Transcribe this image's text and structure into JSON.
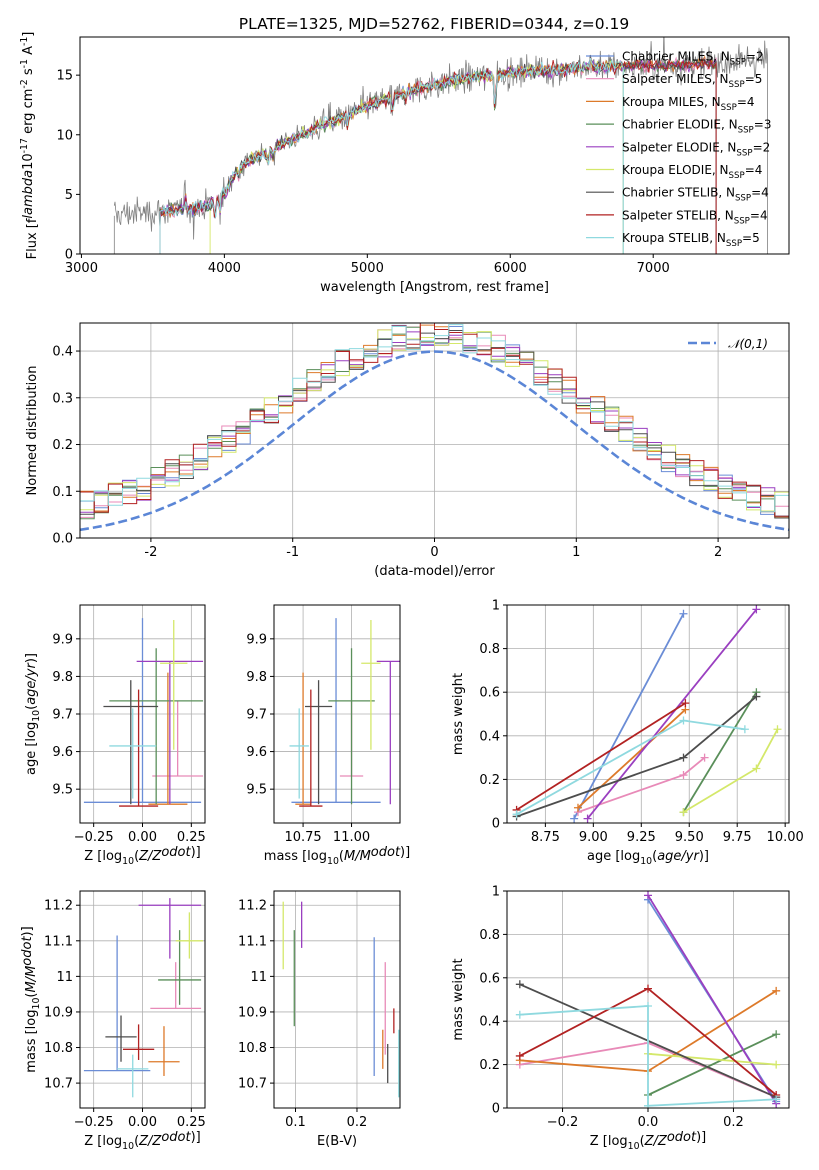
{
  "figure": {
    "title": "PLATE=1325, MJD=52762, FIBERID=0344, z=0.19"
  },
  "series": [
    {
      "name": "Chabrier MILES, N$_{SSP}$=2",
      "color": "#6b8dd6"
    },
    {
      "name": "Salpeter MILES, N$_{SSP}$=5",
      "color": "#e88ab8"
    },
    {
      "name": "Kroupa MILES, N$_{SSP}$=4",
      "color": "#dd7a2a"
    },
    {
      "name": "Chabrier ELODIE, N$_{SSP}$=3",
      "color": "#5a8f5a"
    },
    {
      "name": "Salpeter ELODIE, N$_{SSP}$=2",
      "color": "#9a3fc0"
    },
    {
      "name": "Kroupa ELODIE, N$_{SSP}$=4",
      "color": "#d4e86a"
    },
    {
      "name": "Chabrier STELIB, N$_{SSP}$=4",
      "color": "#4d4d4d"
    },
    {
      "name": "Salpeter STELIB, N$_{SSP}$=4",
      "color": "#b22222"
    },
    {
      "name": "Kroupa STELIB, N$_{SSP}$=5",
      "color": "#8fd9df"
    }
  ],
  "chart_data": [
    {
      "id": "spectrum",
      "type": "line",
      "title": "PLATE=1325, MJD=52762, FIBERID=0344, z=0.19",
      "xlabel": "wavelength [Angstrom, rest frame]",
      "ylabel": "Flux [f$_\\lambda$10$^{-17}$ erg cm$^{-2}$ s$^{-1}$ A$^{-1}$]",
      "xlim": [
        2990,
        7950
      ],
      "ylim": [
        0,
        18.2
      ],
      "xticks": [
        3000,
        4000,
        5000,
        6000,
        7000
      ],
      "yticks": [
        0,
        5,
        10,
        15
      ],
      "grid": false,
      "legend": "top-right",
      "data_color": "#808080",
      "data_range": [
        3230,
        7800
      ],
      "model_ranges": [
        [
          3550,
          6790
        ],
        [
          3550,
          7440
        ],
        [
          3550,
          7440
        ],
        [
          3550,
          7440
        ],
        [
          3550,
          7440
        ],
        [
          3900,
          6790
        ],
        [
          3550,
          7440
        ],
        [
          3550,
          7440
        ],
        [
          3550,
          6790
        ]
      ],
      "continuum": {
        "x": [
          3230,
          3300,
          3500,
          3700,
          3800,
          3900,
          4000,
          4100,
          4300,
          4500,
          4700,
          5000,
          5300,
          5600,
          5900,
          6200,
          6500,
          6800,
          7100,
          7400,
          7800
        ],
        "y": [
          3.2,
          3.4,
          3.5,
          3.7,
          3.9,
          4.2,
          5.0,
          7.3,
          8.6,
          9.8,
          10.9,
          12.4,
          13.7,
          14.6,
          15.1,
          15.4,
          15.6,
          15.8,
          15.8,
          16.0,
          16.4
        ]
      }
    },
    {
      "id": "residuals",
      "type": "line",
      "xlabel": "(data-model)/error",
      "ylabel": "Normed distribution",
      "xlim": [
        -2.5,
        2.5
      ],
      "ylim": [
        0,
        0.46
      ],
      "xticks": [
        -2,
        -1,
        0,
        1,
        2
      ],
      "yticks": [
        0.0,
        0.1,
        0.2,
        0.3,
        0.4
      ],
      "grid": true,
      "legend": "top-right",
      "reference": {
        "name": "$\\mathcal{N}(0,1)$",
        "color": "#5b86d6"
      },
      "hist_bins": 50,
      "hist_width": 0.1
    },
    {
      "id": "z-age",
      "type": "scatter",
      "xlabel": "Z [log$_{10}$($Z/Z_\\odot$)]",
      "ylabel": "age  [log$_{10}$($age/yr$)]",
      "xlim": [
        -0.32,
        0.32
      ],
      "ylim": [
        9.41,
        9.99
      ],
      "xticks": [
        -0.25,
        0.0,
        0.25
      ],
      "yticks": [
        9.5,
        9.6,
        9.7,
        9.8,
        9.9
      ],
      "xtick_labels": [
        "−0.25",
        "0.00",
        "0.25"
      ],
      "grid": true,
      "points": [
        {
          "x": 0.0,
          "y": 9.465,
          "xerr": 0.3,
          "yerr": [
            0.0,
            0.49
          ]
        },
        {
          "x": 0.18,
          "y": 9.535,
          "xerr": 0.13,
          "yerr": [
            0.0,
            0.2
          ]
        },
        {
          "x": 0.13,
          "y": 9.46,
          "xerr": 0.1,
          "yerr": [
            0.0,
            0.35
          ]
        },
        {
          "x": 0.07,
          "y": 9.735,
          "xerr": 0.24,
          "yerr": [
            0.275,
            0.14
          ]
        },
        {
          "x": 0.14,
          "y": 9.84,
          "xerr": 0.17,
          "yerr": [
            0.38,
            0.0
          ]
        },
        {
          "x": 0.16,
          "y": 9.835,
          "xerr": 0.07,
          "yerr": [
            0.23,
            0.115
          ]
        },
        {
          "x": -0.06,
          "y": 9.72,
          "xerr": 0.14,
          "yerr": [
            0.26,
            0.07
          ]
        },
        {
          "x": -0.02,
          "y": 9.455,
          "xerr": 0.1,
          "yerr": [
            0.0,
            0.31
          ]
        },
        {
          "x": -0.05,
          "y": 9.615,
          "xerr": 0.12,
          "yerr": [
            0.14,
            0.1
          ]
        }
      ]
    },
    {
      "id": "mass-age",
      "type": "scatter",
      "xlabel": "mass [log$_{10}$($M/M_\\odot$)]",
      "ylabel": "",
      "xlim": [
        10.6,
        11.25
      ],
      "ylim": [
        9.41,
        9.99
      ],
      "xticks": [
        10.75,
        11.0
      ],
      "yticks": [
        9.5,
        9.6,
        9.7,
        9.8,
        9.9
      ],
      "xtick_labels": [
        "10.75",
        "11.00"
      ],
      "grid": true,
      "points": [
        {
          "x": 10.92,
          "y": 9.465,
          "xerr": 0.23,
          "yerr": [
            0.0,
            0.49
          ]
        },
        {
          "x": 11.0,
          "y": 9.535,
          "xerr": 0.06,
          "yerr": [
            0.0,
            0.2
          ]
        },
        {
          "x": 10.75,
          "y": 9.46,
          "xerr": 0.04,
          "yerr": [
            0.0,
            0.35
          ]
        },
        {
          "x": 11.0,
          "y": 9.735,
          "xerr": 0.12,
          "yerr": [
            0.275,
            0.14
          ]
        },
        {
          "x": 11.2,
          "y": 9.84,
          "xerr": 0.07,
          "yerr": [
            0.38,
            0.0
          ]
        },
        {
          "x": 11.1,
          "y": 9.835,
          "xerr": 0.05,
          "yerr": [
            0.23,
            0.115
          ]
        },
        {
          "x": 10.83,
          "y": 9.72,
          "xerr": 0.07,
          "yerr": [
            0.26,
            0.07
          ]
        },
        {
          "x": 10.79,
          "y": 9.455,
          "xerr": 0.06,
          "yerr": [
            0.0,
            0.31
          ]
        },
        {
          "x": 10.73,
          "y": 9.615,
          "xerr": 0.05,
          "yerr": [
            0.14,
            0.1
          ]
        }
      ]
    },
    {
      "id": "age-weight",
      "type": "line",
      "xlabel": "age  [log$_{10}$($age/yr$)]",
      "ylabel": "mass weight",
      "xlim": [
        8.55,
        10.02
      ],
      "ylim": [
        0,
        1.0
      ],
      "xticks": [
        8.75,
        9.0,
        9.25,
        9.5,
        9.75,
        10.0
      ],
      "yticks": [
        0.0,
        0.2,
        0.4,
        0.6,
        0.8,
        1.0
      ],
      "xtick_labels": [
        "8.75",
        "9.00",
        "9.25",
        "9.50",
        "9.75",
        "10.00"
      ],
      "grid": true,
      "lines": [
        {
          "x": [
            8.9,
            9.47
          ],
          "y": [
            0.02,
            0.96
          ]
        },
        {
          "x": [
            8.92,
            9.47,
            9.58
          ],
          "y": [
            0.05,
            0.22,
            0.3
          ]
        },
        {
          "x": [
            8.92,
            9.48
          ],
          "y": [
            0.07,
            0.52
          ]
        },
        {
          "x": [
            9.47,
            9.85
          ],
          "y": [
            0.05,
            0.6
          ]
        },
        {
          "x": [
            8.97,
            9.85
          ],
          "y": [
            0.02,
            0.98
          ]
        },
        {
          "x": [
            9.47,
            9.85,
            9.96
          ],
          "y": [
            0.05,
            0.25,
            0.43
          ]
        },
        {
          "x": [
            8.6,
            9.47,
            9.85
          ],
          "y": [
            0.03,
            0.3,
            0.58
          ]
        },
        {
          "x": [
            8.6,
            9.48
          ],
          "y": [
            0.06,
            0.55
          ]
        },
        {
          "x": [
            8.6,
            9.47,
            9.79
          ],
          "y": [
            0.04,
            0.47,
            0.43
          ]
        }
      ]
    },
    {
      "id": "z-mass",
      "type": "scatter",
      "xlabel": "Z [log$_{10}$($Z/Z_\\odot$)]",
      "ylabel": "mass [log$_{10}$($M/M_\\odot$)]",
      "xlim": [
        -0.32,
        0.32
      ],
      "ylim": [
        10.63,
        11.24
      ],
      "xticks": [
        -0.25,
        0.0,
        0.25
      ],
      "yticks": [
        10.7,
        10.8,
        10.9,
        11.0,
        11.1,
        11.2
      ],
      "xtick_labels": [
        "−0.25",
        "0.00",
        "0.25"
      ],
      "grid": true,
      "points": [
        {
          "x": -0.13,
          "y": 10.735,
          "xerr": 0.17,
          "yerr": [
            0.0,
            0.38
          ]
        },
        {
          "x": 0.17,
          "y": 10.91,
          "xerr": 0.13,
          "yerr": [
            0.0,
            0.13
          ]
        },
        {
          "x": 0.11,
          "y": 10.76,
          "xerr": 0.08,
          "yerr": [
            0.04,
            0.1
          ]
        },
        {
          "x": 0.19,
          "y": 10.99,
          "xerr": 0.11,
          "yerr": [
            0.07,
            0.14
          ]
        },
        {
          "x": 0.14,
          "y": 11.2,
          "xerr": 0.16,
          "yerr": [
            0.15,
            0.02
          ]
        },
        {
          "x": 0.24,
          "y": 11.1,
          "xerr": 0.07,
          "yerr": [
            0.05,
            0.08
          ]
        },
        {
          "x": -0.11,
          "y": 10.83,
          "xerr": 0.08,
          "yerr": [
            0.07,
            0.06
          ]
        },
        {
          "x": -0.02,
          "y": 10.795,
          "xerr": 0.08,
          "yerr": [
            0.03,
            0.07
          ]
        },
        {
          "x": -0.05,
          "y": 10.74,
          "xerr": 0.08,
          "yerr": [
            0.08,
            0.04
          ]
        }
      ]
    },
    {
      "id": "ebv-mass",
      "type": "scatter",
      "xlabel": "E(B-V)",
      "ylabel": "",
      "xlim": [
        0.065,
        0.27
      ],
      "ylim": [
        10.63,
        11.24
      ],
      "xticks": [
        0.1,
        0.2
      ],
      "yticks": [
        10.7,
        10.8,
        10.9,
        11.0,
        11.1,
        11.2
      ],
      "xtick_labels": [
        "0.1",
        "0.2"
      ],
      "grid": true,
      "points": [
        {
          "x": 0.228,
          "y": 10.9,
          "xerr": 0.0,
          "yerr": [
            0.18,
            0.21
          ]
        },
        {
          "x": 0.246,
          "y": 10.9,
          "xerr": 0.0,
          "yerr": [
            0.12,
            0.14
          ]
        },
        {
          "x": 0.242,
          "y": 10.8,
          "xerr": 0.0,
          "yerr": [
            0.06,
            0.05
          ]
        },
        {
          "x": 0.098,
          "y": 10.99,
          "xerr": 0.0,
          "yerr": [
            0.13,
            0.14
          ]
        },
        {
          "x": 0.11,
          "y": 11.14,
          "xerr": 0.0,
          "yerr": [
            0.06,
            0.07
          ]
        },
        {
          "x": 0.08,
          "y": 11.11,
          "xerr": 0.0,
          "yerr": [
            0.09,
            0.1
          ]
        },
        {
          "x": 0.25,
          "y": 10.76,
          "xerr": 0.0,
          "yerr": [
            0.06,
            0.05
          ]
        },
        {
          "x": 0.26,
          "y": 10.88,
          "xerr": 0.0,
          "yerr": [
            0.04,
            0.03
          ]
        },
        {
          "x": 0.268,
          "y": 10.75,
          "xerr": 0.0,
          "yerr": [
            0.09,
            0.1
          ]
        }
      ]
    },
    {
      "id": "z-weight",
      "type": "line",
      "xlabel": "Z [log$_{10}$($Z/Z_\\odot$)]",
      "ylabel": "mass weight",
      "xlim": [
        -0.33,
        0.33
      ],
      "ylim": [
        0,
        1.0
      ],
      "xticks": [
        -0.2,
        0.0,
        0.2
      ],
      "yticks": [
        0.0,
        0.2,
        0.4,
        0.6,
        0.8,
        1.0
      ],
      "xtick_labels": [
        "−0.2",
        "0.0",
        "0.2"
      ],
      "grid": true,
      "lines": [
        {
          "x": [
            0.0,
            0.3
          ],
          "y": [
            0.96,
            0.03
          ]
        },
        {
          "x": [
            -0.3,
            0.0,
            0.3
          ],
          "y": [
            0.2,
            0.3,
            0.05
          ]
        },
        {
          "x": [
            -0.3,
            0.0,
            0.3
          ],
          "y": [
            0.22,
            0.17,
            0.54
          ]
        },
        {
          "x": [
            0.0,
            0.3
          ],
          "y": [
            0.06,
            0.34
          ]
        },
        {
          "x": [
            0.0,
            0.3
          ],
          "y": [
            0.98,
            0.02
          ]
        },
        {
          "x": [
            0.0,
            0.3
          ],
          "y": [
            0.25,
            0.2
          ]
        },
        {
          "x": [
            -0.3,
            0.3
          ],
          "y": [
            0.57,
            0.05
          ]
        },
        {
          "x": [
            -0.3,
            0.0,
            0.3
          ],
          "y": [
            0.24,
            0.55,
            0.06
          ]
        },
        {
          "x": [
            -0.3,
            0.0,
            0.0,
            0.3
          ],
          "y": [
            0.43,
            0.47,
            0.01,
            0.04
          ]
        }
      ]
    }
  ]
}
